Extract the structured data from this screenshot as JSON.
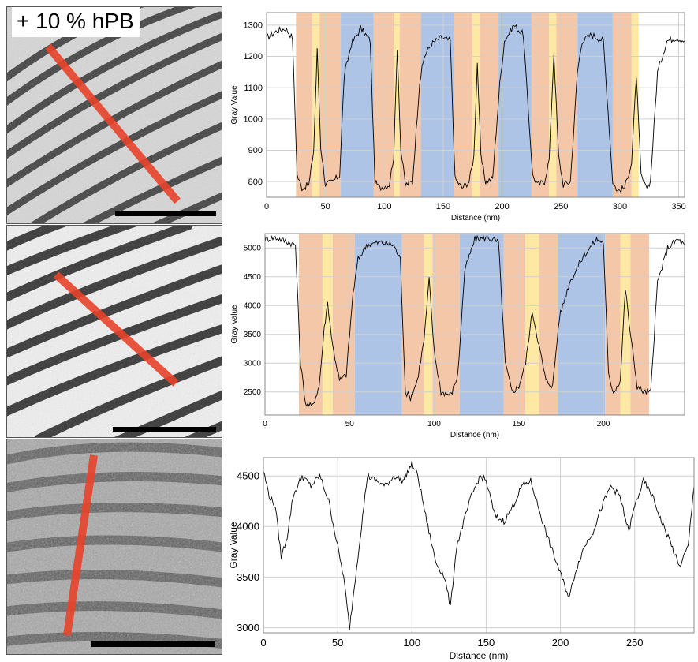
{
  "panel_label": "+ 10 % hPB",
  "colors": {
    "orange_region": "#f4c7a8",
    "yellow_region": "#fde9a3",
    "blue_region": "#aec4e6",
    "scan_line": "#e8432a",
    "scale_bar": "#000000",
    "trace": "#000000",
    "grid": "#d0d0d0"
  },
  "chart_data": [
    {
      "type": "line",
      "xlabel": "Distance (nm)",
      "ylabel": "Gray Value",
      "xlim": [
        0,
        355
      ],
      "ylim": [
        750,
        1340
      ],
      "xticks": [
        0,
        50,
        100,
        150,
        200,
        250,
        300,
        350
      ],
      "yticks": [
        800,
        900,
        1000,
        1100,
        1200,
        1300
      ],
      "regions": [
        {
          "from": 25,
          "to": 39,
          "color": "orange"
        },
        {
          "from": 39,
          "to": 45,
          "color": "yellow"
        },
        {
          "from": 45,
          "to": 63,
          "color": "orange"
        },
        {
          "from": 63,
          "to": 91,
          "color": "blue"
        },
        {
          "from": 91,
          "to": 108,
          "color": "orange"
        },
        {
          "from": 108,
          "to": 113,
          "color": "yellow"
        },
        {
          "from": 113,
          "to": 131,
          "color": "orange"
        },
        {
          "from": 131,
          "to": 159,
          "color": "blue"
        },
        {
          "from": 159,
          "to": 175,
          "color": "orange"
        },
        {
          "from": 175,
          "to": 181,
          "color": "yellow"
        },
        {
          "from": 181,
          "to": 197,
          "color": "orange"
        },
        {
          "from": 197,
          "to": 225,
          "color": "blue"
        },
        {
          "from": 225,
          "to": 240,
          "color": "orange"
        },
        {
          "from": 240,
          "to": 246,
          "color": "yellow"
        },
        {
          "from": 246,
          "to": 264,
          "color": "orange"
        },
        {
          "from": 264,
          "to": 294,
          "color": "blue"
        },
        {
          "from": 294,
          "to": 310,
          "color": "orange"
        },
        {
          "from": 310,
          "to": 316,
          "color": "yellow"
        }
      ],
      "series": [
        {
          "x": [
            0,
            8,
            16,
            22,
            26,
            30,
            36,
            40,
            43,
            46,
            50,
            56,
            62,
            66,
            72,
            80,
            88,
            92,
            96,
            104,
            108,
            111,
            114,
            118,
            124,
            130,
            134,
            140,
            148,
            156,
            160,
            166,
            172,
            176,
            179,
            182,
            186,
            192,
            198,
            202,
            210,
            218,
            226,
            230,
            236,
            240,
            244,
            248,
            252,
            258,
            264,
            268,
            276,
            286,
            294,
            298,
            304,
            310,
            314,
            318,
            322,
            326,
            332,
            340,
            348,
            355
          ],
          "values": [
            1260,
            1280,
            1290,
            1260,
            820,
            780,
            790,
            900,
            1220,
            910,
            790,
            800,
            820,
            1140,
            1240,
            1290,
            1250,
            800,
            780,
            790,
            880,
            1230,
            900,
            790,
            800,
            1120,
            1200,
            1240,
            1260,
            1250,
            810,
            780,
            800,
            880,
            1180,
            880,
            800,
            810,
            1110,
            1250,
            1300,
            1270,
            820,
            790,
            800,
            870,
            1210,
            880,
            790,
            800,
            1150,
            1250,
            1270,
            1250,
            800,
            770,
            780,
            860,
            1140,
            820,
            780,
            800,
            1150,
            1250,
            1260,
            1250
          ]
        }
      ]
    },
    {
      "type": "line",
      "xlabel": "Distance (nm)",
      "ylabel": "Gray Value",
      "xlim": [
        0,
        248
      ],
      "ylim": [
        2100,
        5250
      ],
      "xticks": [
        0,
        50,
        100,
        150,
        200
      ],
      "yticks": [
        2500,
        3000,
        3500,
        4000,
        4500,
        5000
      ],
      "regions": [
        {
          "from": 20,
          "to": 34,
          "color": "orange"
        },
        {
          "from": 34,
          "to": 40,
          "color": "yellow"
        },
        {
          "from": 40,
          "to": 53,
          "color": "orange"
        },
        {
          "from": 53,
          "to": 81,
          "color": "blue"
        },
        {
          "from": 81,
          "to": 94,
          "color": "orange"
        },
        {
          "from": 94,
          "to": 99,
          "color": "yellow"
        },
        {
          "from": 99,
          "to": 115,
          "color": "orange"
        },
        {
          "from": 115,
          "to": 141,
          "color": "blue"
        },
        {
          "from": 141,
          "to": 154,
          "color": "orange"
        },
        {
          "from": 154,
          "to": 162,
          "color": "yellow"
        },
        {
          "from": 162,
          "to": 173,
          "color": "orange"
        },
        {
          "from": 173,
          "to": 201,
          "color": "blue"
        },
        {
          "from": 201,
          "to": 210,
          "color": "orange"
        },
        {
          "from": 210,
          "to": 216,
          "color": "yellow"
        },
        {
          "from": 216,
          "to": 227,
          "color": "orange"
        }
      ],
      "series": [
        {
          "x": [
            0,
            6,
            12,
            18,
            21,
            24,
            28,
            32,
            35,
            37,
            40,
            44,
            48,
            52,
            55,
            60,
            68,
            76,
            80,
            83,
            86,
            90,
            94,
            97,
            100,
            104,
            110,
            114,
            118,
            124,
            132,
            138,
            142,
            146,
            150,
            154,
            158,
            162,
            166,
            170,
            174,
            180,
            188,
            196,
            200,
            203,
            206,
            210,
            213,
            216,
            220,
            224,
            228,
            232,
            238,
            244,
            248
          ],
          "values": [
            5150,
            5180,
            5120,
            5050,
            3000,
            2300,
            2250,
            2600,
            3600,
            4050,
            3300,
            2700,
            2800,
            4200,
            4800,
            5050,
            5100,
            5050,
            4800,
            2500,
            2400,
            2700,
            3400,
            4450,
            3200,
            2500,
            2450,
            2800,
            4600,
            5150,
            5180,
            5100,
            3000,
            2500,
            2600,
            3000,
            3900,
            3300,
            2700,
            2600,
            3800,
            4400,
            4850,
            5150,
            5100,
            2800,
            2500,
            2700,
            4300,
            3500,
            2600,
            2500,
            2500,
            4400,
            5000,
            5150,
            5050
          ]
        }
      ]
    },
    {
      "type": "line",
      "xlabel": "Distance (nm)",
      "ylabel": "Gray Value",
      "xlim": [
        0,
        290
      ],
      "ylim": [
        2950,
        4680
      ],
      "xticks": [
        0,
        50,
        100,
        150,
        200,
        250
      ],
      "yticks": [
        3000,
        3500,
        4000,
        4500
      ],
      "regions": [],
      "series": [
        {
          "x": [
            0,
            4,
            8,
            12,
            16,
            20,
            26,
            32,
            38,
            44,
            50,
            54,
            58,
            62,
            66,
            70,
            76,
            82,
            88,
            94,
            100,
            104,
            110,
            116,
            122,
            126,
            130,
            134,
            140,
            146,
            150,
            156,
            162,
            168,
            174,
            180,
            184,
            190,
            196,
            202,
            206,
            210,
            216,
            222,
            228,
            234,
            240,
            246,
            250,
            256,
            262,
            268,
            274,
            280,
            286,
            290
          ],
          "values": [
            4550,
            4300,
            4200,
            3700,
            3900,
            4300,
            4500,
            4400,
            4500,
            4250,
            3800,
            3500,
            3000,
            3500,
            4000,
            4500,
            4450,
            4400,
            4500,
            4450,
            4620,
            4500,
            4050,
            3650,
            3500,
            3200,
            3800,
            4000,
            4300,
            4500,
            4450,
            4100,
            4050,
            4200,
            4400,
            4450,
            4250,
            3950,
            3700,
            3450,
            3300,
            3550,
            3800,
            3950,
            4200,
            4400,
            4300,
            3950,
            4200,
            4450,
            4300,
            4050,
            3850,
            3600,
            3800,
            4400
          ]
        }
      ]
    }
  ]
}
